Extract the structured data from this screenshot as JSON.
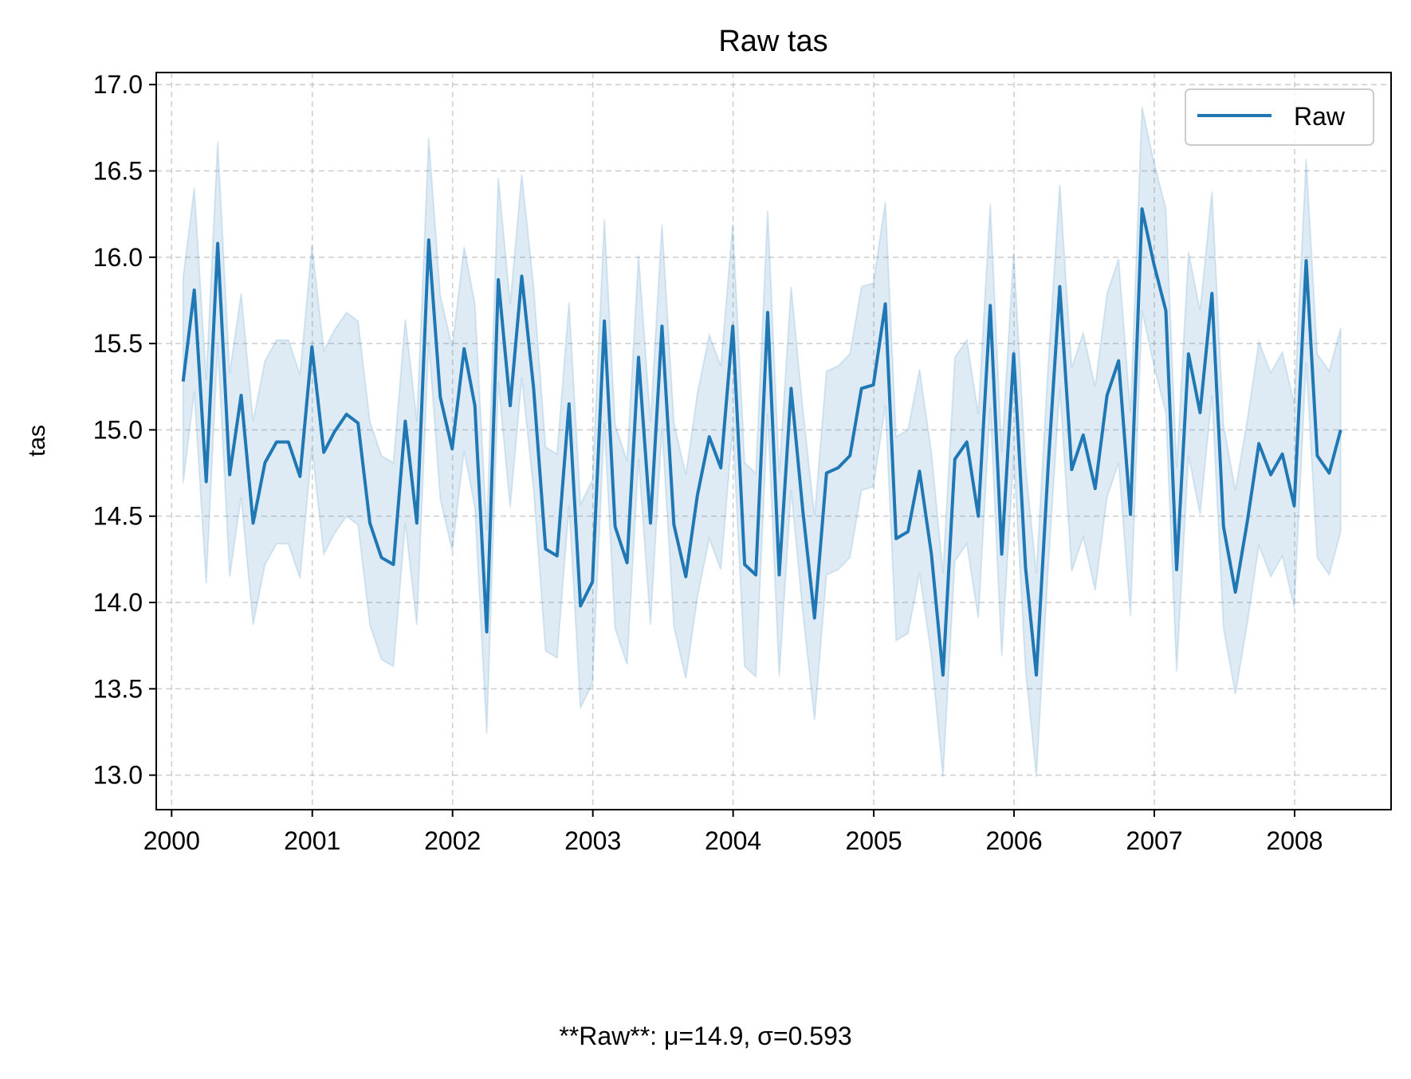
{
  "chart_data": {
    "type": "line",
    "title": "Raw tas",
    "xlabel": "",
    "ylabel": "tas",
    "ylim": [
      12.8,
      17.07
    ],
    "xlim": [
      "1999-11-22",
      "2008-09-08"
    ],
    "x_ticks": [
      "2000",
      "2001",
      "2002",
      "2003",
      "2004",
      "2005",
      "2006",
      "2007",
      "2008"
    ],
    "y_ticks": [
      "13.0",
      "13.5",
      "14.0",
      "14.5",
      "15.0",
      "15.5",
      "16.0",
      "16.5",
      "17.0"
    ],
    "grid": true,
    "legend": {
      "placement": "top-right",
      "entries": [
        "Raw"
      ]
    },
    "colors": {
      "line": "#1f77b4",
      "band": "#1f77b4"
    },
    "footer_text": "**Raw**: μ=14.9, σ=0.593",
    "series": [
      {
        "name": "Raw",
        "band": "min-max",
        "x": [
          "2000-01-31",
          "2000-02-29",
          "2000-03-31",
          "2000-04-30",
          "2000-05-31",
          "2000-06-30",
          "2000-07-31",
          "2000-08-31",
          "2000-09-30",
          "2000-10-31",
          "2000-11-30",
          "2000-12-31",
          "2001-01-31",
          "2001-02-28",
          "2001-03-31",
          "2001-04-30",
          "2001-05-31",
          "2001-06-30",
          "2001-07-31",
          "2001-08-31",
          "2001-09-30",
          "2001-10-31",
          "2001-11-30",
          "2001-12-31",
          "2002-01-31",
          "2002-02-28",
          "2002-03-31",
          "2002-04-30",
          "2002-05-31",
          "2002-06-30",
          "2002-07-31",
          "2002-08-31",
          "2002-09-30",
          "2002-10-31",
          "2002-11-30",
          "2002-12-31",
          "2003-01-31",
          "2003-02-28",
          "2003-03-31",
          "2003-04-30",
          "2003-05-31",
          "2003-06-30",
          "2003-07-31",
          "2003-08-31",
          "2003-09-30",
          "2003-10-31",
          "2003-11-30",
          "2003-12-31",
          "2004-01-31",
          "2004-02-29",
          "2004-03-31",
          "2004-04-30",
          "2004-05-31",
          "2004-06-30",
          "2004-07-31",
          "2004-08-31",
          "2004-09-30",
          "2004-10-31",
          "2004-11-30",
          "2004-12-31",
          "2005-01-31",
          "2005-02-28",
          "2005-03-31",
          "2005-04-30",
          "2005-05-31",
          "2005-06-30",
          "2005-07-31",
          "2005-08-31",
          "2005-09-30",
          "2005-10-31",
          "2005-11-30",
          "2005-12-31",
          "2006-01-31",
          "2006-02-28",
          "2006-03-31",
          "2006-04-30",
          "2006-05-31",
          "2006-06-30",
          "2006-07-31",
          "2006-08-31",
          "2006-09-30",
          "2006-10-31",
          "2006-11-30",
          "2006-12-31",
          "2007-01-31",
          "2007-02-28",
          "2007-03-31",
          "2007-04-30",
          "2007-05-31",
          "2007-06-30",
          "2007-07-31",
          "2007-08-31",
          "2007-09-30",
          "2007-10-31",
          "2007-11-30",
          "2007-12-31",
          "2008-01-31",
          "2008-02-29",
          "2008-03-31",
          "2008-04-30"
        ],
        "y": [
          15.28,
          15.81,
          14.7,
          16.08,
          14.74,
          15.2,
          14.46,
          14.81,
          14.93,
          14.93,
          14.73,
          15.48,
          14.87,
          14.99,
          15.09,
          15.04,
          14.46,
          14.26,
          14.22,
          15.05,
          14.46,
          16.1,
          15.19,
          14.89,
          15.47,
          15.14,
          13.83,
          15.87,
          15.14,
          15.89,
          15.24,
          14.31,
          14.27,
          15.15,
          13.98,
          14.12,
          15.63,
          14.44,
          14.23,
          15.42,
          14.46,
          15.6,
          14.45,
          14.15,
          14.62,
          14.96,
          14.78,
          15.6,
          14.22,
          14.16,
          15.68,
          14.16,
          15.24,
          14.54,
          13.91,
          14.75,
          14.78,
          14.85,
          15.24,
          15.26,
          15.73,
          14.37,
          14.41,
          14.76,
          14.28,
          13.58,
          14.83,
          14.93,
          14.5,
          15.72,
          14.28,
          15.44,
          14.2,
          13.58,
          14.8,
          15.83,
          14.77,
          14.97,
          14.66,
          15.2,
          15.4,
          14.51,
          16.28,
          15.96,
          15.69,
          14.19,
          15.44,
          15.1,
          15.79,
          14.44,
          14.06,
          14.47,
          14.92,
          14.74,
          14.86,
          14.56,
          15.98,
          14.85,
          14.75,
          15.0
        ],
        "upper": [
          15.88,
          16.4,
          15.29,
          16.67,
          15.33,
          15.79,
          15.05,
          15.4,
          15.52,
          15.52,
          15.32,
          16.07,
          15.46,
          15.58,
          15.68,
          15.63,
          15.05,
          14.85,
          14.81,
          15.64,
          15.05,
          16.69,
          15.78,
          15.48,
          16.06,
          15.73,
          14.42,
          16.46,
          15.73,
          16.48,
          15.83,
          14.9,
          14.86,
          15.74,
          14.57,
          14.71,
          16.22,
          15.03,
          14.82,
          16.01,
          15.05,
          16.19,
          15.04,
          14.74,
          15.21,
          15.55,
          15.37,
          16.19,
          14.81,
          14.75,
          16.27,
          14.75,
          15.83,
          15.13,
          14.5,
          15.34,
          15.37,
          15.44,
          15.83,
          15.85,
          16.32,
          14.96,
          15.0,
          15.35,
          14.87,
          14.17,
          15.42,
          15.52,
          15.09,
          16.31,
          14.87,
          16.03,
          14.79,
          14.17,
          15.39,
          16.42,
          15.36,
          15.56,
          15.25,
          15.79,
          15.99,
          15.1,
          16.87,
          16.55,
          16.28,
          14.78,
          16.03,
          15.69,
          16.38,
          15.03,
          14.65,
          15.06,
          15.51,
          15.33,
          15.45,
          15.15,
          16.57,
          15.44,
          15.34,
          15.59
        ],
        "lower": [
          14.69,
          15.22,
          14.11,
          15.49,
          14.15,
          14.61,
          13.87,
          14.22,
          14.34,
          14.34,
          14.14,
          14.89,
          14.28,
          14.4,
          14.5,
          14.45,
          13.87,
          13.67,
          13.63,
          14.46,
          13.87,
          15.51,
          14.6,
          14.3,
          14.88,
          14.55,
          13.24,
          15.28,
          14.55,
          15.3,
          14.65,
          13.72,
          13.68,
          14.56,
          13.39,
          13.53,
          15.04,
          13.85,
          13.64,
          14.83,
          13.87,
          15.01,
          13.86,
          13.56,
          14.03,
          14.37,
          14.19,
          15.01,
          13.63,
          13.57,
          15.09,
          13.57,
          14.65,
          13.95,
          13.32,
          14.16,
          14.19,
          14.26,
          14.65,
          14.67,
          15.14,
          13.78,
          13.82,
          14.17,
          13.69,
          12.99,
          14.24,
          14.34,
          13.91,
          15.13,
          13.69,
          14.85,
          13.61,
          12.99,
          14.21,
          15.24,
          14.18,
          14.38,
          14.07,
          14.61,
          14.81,
          13.92,
          15.69,
          15.37,
          15.1,
          13.6,
          14.85,
          14.51,
          15.2,
          13.85,
          13.47,
          13.88,
          14.33,
          14.15,
          14.27,
          13.97,
          15.39,
          14.26,
          14.16,
          14.41
        ]
      }
    ]
  }
}
